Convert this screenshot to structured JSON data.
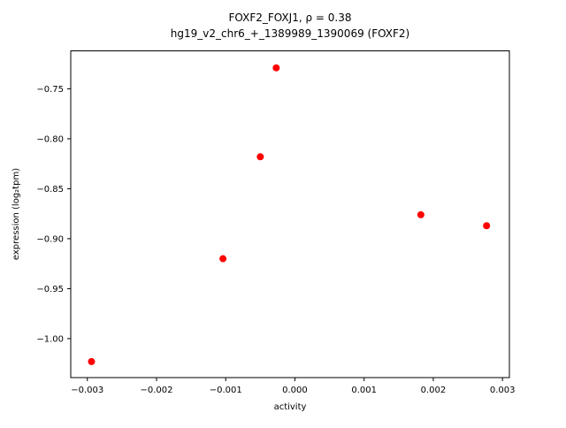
{
  "chart_data": {
    "type": "scatter",
    "title_line1": "FOXF2_FOXJ1, ρ = 0.38",
    "title_line2": "hg19_v2_chr6_+_1389989_1390069 (FOXF2)",
    "xlabel": "activity",
    "ylabel": "expression (log₂tpm)",
    "marker_color": "#ff0000",
    "marker_radius": 4,
    "xlim": [
      -0.00324,
      0.0031
    ],
    "ylim": [
      -1.039,
      -0.712
    ],
    "xticks": [
      -0.003,
      -0.002,
      -0.001,
      0.0,
      0.001,
      0.002,
      0.003
    ],
    "xtick_labels": [
      "−0.003",
      "−0.002",
      "−0.001",
      "0.000",
      "0.001",
      "0.002",
      "0.003"
    ],
    "yticks": [
      -0.75,
      -0.8,
      -0.85,
      -0.9,
      -0.95,
      -1.0
    ],
    "ytick_labels": [
      "−0.75",
      "−0.80",
      "−0.85",
      "−0.90",
      "−0.95",
      "−1.00"
    ],
    "points": [
      {
        "x": -0.00294,
        "y": -1.023
      },
      {
        "x": -0.00104,
        "y": -0.92
      },
      {
        "x": -0.0005,
        "y": -0.818
      },
      {
        "x": -0.00027,
        "y": -0.729
      },
      {
        "x": 0.00182,
        "y": -0.876
      },
      {
        "x": 0.00277,
        "y": -0.887
      }
    ],
    "grid": false,
    "legend": null
  }
}
